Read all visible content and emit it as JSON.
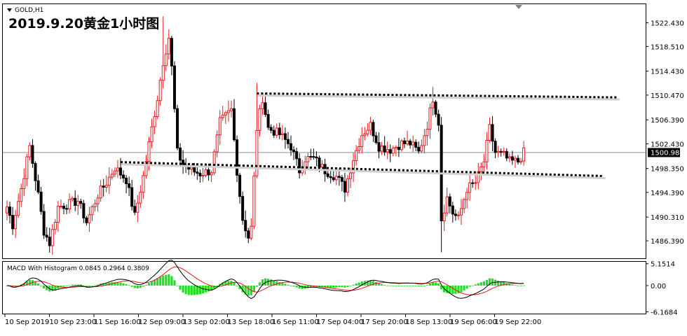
{
  "window": {
    "symbol_label": "GOLD,H1",
    "title": "2019.9.20黄金1小时图"
  },
  "chart_data": [
    {
      "type": "candlestick",
      "symbol": "GOLD",
      "timeframe": "H1",
      "title": "2019.9.20黄金1小时图",
      "ylim": [
        1483.5,
        1525.5
      ],
      "y_ticks": [
        1522.43,
        1518.51,
        1514.43,
        1510.47,
        1506.39,
        1502.43,
        1498.35,
        1494.39,
        1490.31,
        1486.39
      ],
      "y_tick_labels": [
        "1522.430",
        "1518.510",
        "1514.430",
        "1510.470",
        "1506.390",
        "1502.430",
        "1498.350",
        "1494.390",
        "1490.310",
        "1486.390"
      ],
      "current_price": 1500.98,
      "current_price_label": "1500.980",
      "x_labels": [
        "10 Sep 2019",
        "10 Sep 23:00",
        "11 Sep 16:00",
        "12 Sep 09:00",
        "13 Sep 02:00",
        "13 Sep 18:00",
        "16 Sep 11:00",
        "17 Sep 04:00",
        "17 Sep 20:00",
        "18 Sep 13:00",
        "19 Sep 06:00",
        "19 Sep 22:00"
      ],
      "waypoints": [
        [
          0,
          1492
        ],
        [
          2,
          1489
        ],
        [
          5,
          1495
        ],
        [
          8,
          1502
        ],
        [
          11,
          1494
        ],
        [
          13,
          1488
        ],
        [
          15,
          1486
        ],
        [
          18,
          1492
        ],
        [
          22,
          1492.5
        ],
        [
          25,
          1493
        ],
        [
          28,
          1489.5
        ],
        [
          32,
          1494
        ],
        [
          35,
          1496
        ],
        [
          38,
          1498.5
        ],
        [
          42,
          1496.5
        ],
        [
          45,
          1490.5
        ],
        [
          48,
          1497
        ],
        [
          51,
          1505
        ],
        [
          53,
          1510
        ],
        [
          55,
          1516
        ],
        [
          57,
          1520
        ],
        [
          58,
          1515
        ],
        [
          60,
          1501
        ],
        [
          62,
          1499
        ],
        [
          65,
          1498
        ],
        [
          68,
          1497.5
        ],
        [
          72,
          1498
        ],
        [
          75,
          1506
        ],
        [
          79,
          1508
        ],
        [
          81,
          1498
        ],
        [
          83,
          1490
        ],
        [
          85,
          1487
        ],
        [
          86,
          1488.5
        ],
        [
          88,
          1505
        ],
        [
          90,
          1510
        ],
        [
          92,
          1505
        ],
        [
          96,
          1504
        ],
        [
          100,
          1502
        ],
        [
          103,
          1498
        ],
        [
          105,
          1500
        ],
        [
          108,
          1500
        ],
        [
          112,
          1498
        ],
        [
          116,
          1497
        ],
        [
          119,
          1495
        ],
        [
          122,
          1500
        ],
        [
          125,
          1504
        ],
        [
          128,
          1505.5
        ],
        [
          131,
          1502
        ],
        [
          135,
          1501.5
        ],
        [
          139,
          1502.5
        ],
        [
          142,
          1502.5
        ],
        [
          145,
          1501
        ],
        [
          148,
          1505.5
        ],
        [
          150,
          1510
        ],
        [
          152,
          1506
        ],
        [
          153,
          1490
        ],
        [
          155,
          1493.5
        ],
        [
          157,
          1491
        ],
        [
          159,
          1490
        ],
        [
          162,
          1495
        ],
        [
          165,
          1496
        ],
        [
          168,
          1499.5
        ],
        [
          170,
          1505
        ],
        [
          172,
          1501
        ],
        [
          175,
          1500.5
        ],
        [
          177,
          1499.5
        ],
        [
          180,
          1499.5
        ],
        [
          182,
          1501
        ]
      ],
      "trendlines": [
        {
          "style": "dotted",
          "from": [
            1510.75,
            88
          ],
          "to": [
            1510.1,
            215
          ]
        },
        {
          "style": "dotted",
          "from": [
            1499.4,
            40
          ],
          "to": [
            1497.1,
            210
          ]
        }
      ]
    },
    {
      "type": "line",
      "indicator_label": "MACD With Histogram 0.0845 0.2964 0.3809",
      "ylim": [
        -6.6,
        5.6
      ],
      "y_ticks": [
        5.1514,
        0.0,
        -6.1684
      ],
      "y_tick_labels": [
        "5.1514",
        "0.00",
        "-6.1684"
      ]
    }
  ]
}
